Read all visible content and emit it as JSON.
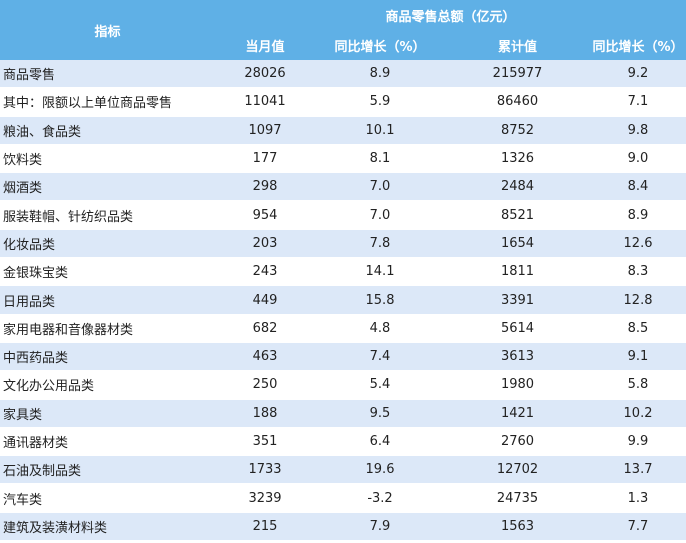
{
  "table": {
    "header": {
      "indicator": "指标",
      "group": "商品零售总额（亿元）",
      "columns": [
        "当月值",
        "同比增长（%）",
        "累计值",
        "同比增长（%）"
      ]
    },
    "rows": [
      [
        "商品零售",
        "28026",
        "8.9",
        "215977",
        "9.2"
      ],
      [
        "其中：限额以上单位商品零售",
        "11041",
        "5.9",
        "86460",
        "7.1"
      ],
      [
        "粮油、食品类",
        "1097",
        "10.1",
        "8752",
        "9.8"
      ],
      [
        "饮料类",
        "177",
        "8.1",
        "1326",
        "9.0"
      ],
      [
        "烟酒类",
        "298",
        "7.0",
        "2484",
        "8.4"
      ],
      [
        "服装鞋帽、针纺织品类",
        "954",
        "7.0",
        "8521",
        "8.9"
      ],
      [
        "化妆品类",
        "203",
        "7.8",
        "1654",
        "12.6"
      ],
      [
        "金银珠宝类",
        "243",
        "14.1",
        "1811",
        "8.3"
      ],
      [
        "日用品类",
        "449",
        "15.8",
        "3391",
        "12.8"
      ],
      [
        "家用电器和音像器材类",
        "682",
        "4.8",
        "5614",
        "8.5"
      ],
      [
        "中西药品类",
        "463",
        "7.4",
        "3613",
        "9.1"
      ],
      [
        "文化办公用品类",
        "250",
        "5.4",
        "1980",
        "5.8"
      ],
      [
        "家具类",
        "188",
        "9.5",
        "1421",
        "10.2"
      ],
      [
        "通讯器材类",
        "351",
        "6.4",
        "2760",
        "9.9"
      ],
      [
        "石油及制品类",
        "1733",
        "19.6",
        "12702",
        "13.7"
      ],
      [
        "汽车类",
        "3239",
        "-3.2",
        "24735",
        "1.3"
      ],
      [
        "建筑及装潢材料类",
        "215",
        "7.9",
        "1563",
        "7.7"
      ]
    ]
  }
}
